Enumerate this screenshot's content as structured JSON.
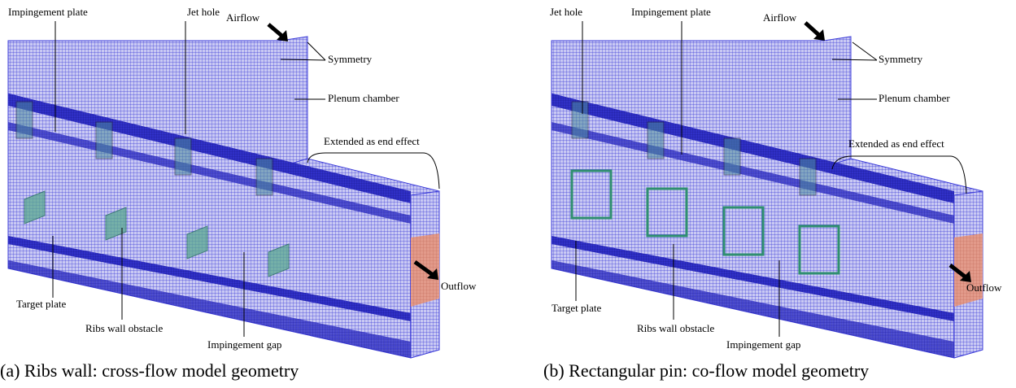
{
  "panels": [
    {
      "caption": "(a) Ribs wall: cross-flow model geometry",
      "labels": [
        "Impingement plate",
        "Jet hole",
        "Airflow",
        "Symmetry",
        "Plenum chamber",
        "Extended as end effect",
        "Outflow",
        "Target plate",
        "Ribs wall obstacle",
        "Impingement gap"
      ]
    },
    {
      "caption": "(b) Rectangular pin: co-flow model geometry",
      "labels": [
        "Jet hole",
        "Impingement plate",
        "Airflow",
        "Symmetry",
        "Plenum chamber",
        "Extended as end effect",
        "Outflow",
        "Target plate",
        "Ribs wall obstacle",
        "Impingement gap"
      ]
    }
  ]
}
